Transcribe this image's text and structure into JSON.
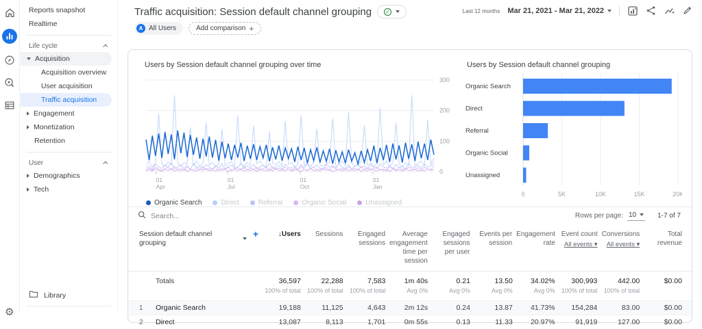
{
  "rail": {
    "icons": [
      "home-icon",
      "reports-icon",
      "explore-icon",
      "advertising-icon",
      "configure-icon",
      "settings-gear-icon"
    ],
    "active_icon": "reports-icon"
  },
  "sidebar": {
    "items": [
      {
        "type": "plain",
        "label": "Reports snapshot"
      },
      {
        "type": "plain",
        "label": "Realtime"
      },
      {
        "type": "divider"
      },
      {
        "type": "section",
        "label": "Life cycle"
      },
      {
        "type": "parent-open",
        "label": "Acquisition",
        "pill": true
      },
      {
        "type": "child",
        "label": "Acquisition overview"
      },
      {
        "type": "child",
        "label": "User acquisition"
      },
      {
        "type": "child",
        "label": "Traffic acquisition",
        "selected": true
      },
      {
        "type": "parent-closed",
        "label": "Engagement"
      },
      {
        "type": "parent-closed",
        "label": "Monetization"
      },
      {
        "type": "parent-none",
        "label": "Retention"
      },
      {
        "type": "divider"
      },
      {
        "type": "section",
        "label": "User"
      },
      {
        "type": "parent-closed",
        "label": "Demographics"
      },
      {
        "type": "parent-closed",
        "label": "Tech"
      }
    ],
    "library_label": "Library",
    "selected_color": "#1a73e8"
  },
  "header": {
    "title": "Traffic acquisition: Session default channel grouping",
    "date_preset": "Last 12 months",
    "date_range": "Mar 21, 2021 - Mar 21, 2022",
    "icons": [
      "edit-chart-icon",
      "share-icon",
      "insights-icon",
      "edit-pencil-icon"
    ]
  },
  "chips": {
    "all_users": "All Users",
    "all_users_initial": "A",
    "add_comparison": "Add comparison",
    "add_plus": "+"
  },
  "chart_data": [
    {
      "type": "line",
      "title": "Users by Session default channel grouping over time",
      "ylabel": "",
      "xlabel": "",
      "ylim": [
        0,
        300
      ],
      "yticks": [
        0,
        100,
        200,
        300
      ],
      "grid": true,
      "legend_position": "bottom",
      "x_ticks": [
        {
          "line1": "01",
          "line2": "Apr",
          "pos": 0.035
        },
        {
          "line1": "01",
          "line2": "Jul",
          "pos": 0.283
        },
        {
          "line1": "01",
          "line2": "Oct",
          "pos": 0.535
        },
        {
          "line1": "01",
          "line2": "Jan",
          "pos": 0.788
        }
      ],
      "series": [
        {
          "name": "Organic Search",
          "color": "#1967d2",
          "faded": false,
          "values": [
            105,
            38,
            118,
            52,
            125,
            45,
            130,
            58,
            122,
            40,
            135,
            60,
            128,
            48,
            120,
            55,
            112,
            42,
            108,
            50,
            115,
            46,
            104,
            36,
            98,
            44,
            92,
            38,
            88,
            46,
            95,
            35,
            85,
            42,
            90,
            38,
            82,
            45,
            88,
            34,
            80,
            40,
            86,
            36,
            78,
            43,
            75,
            32,
            82,
            38,
            78,
            28,
            72,
            36,
            80,
            30,
            68,
            34,
            75,
            26,
            70,
            32,
            65,
            28,
            72,
            34,
            62,
            25,
            68,
            30,
            72,
            35,
            85,
            28,
            78,
            38,
            88,
            32,
            92,
            40,
            86,
            30,
            95,
            42,
            90,
            35,
            98,
            44,
            92,
            38,
            105,
            55
          ]
        },
        {
          "name": "Direct",
          "color": "#b7cffb",
          "faded": true,
          "values": [
            20,
            35,
            15,
            28,
            190,
            25,
            18,
            32,
            22,
            250,
            28,
            16,
            30,
            24,
            145,
            20,
            35,
            18,
            26,
            160,
            22,
            30,
            17,
            25,
            140,
            19,
            28,
            33,
            15,
            185,
            24,
            18,
            30,
            22,
            150,
            26,
            35,
            20,
            16,
            130,
            28,
            22,
            33,
            18,
            165,
            25,
            30,
            15,
            24,
            185,
            20,
            28,
            16,
            32,
            140,
            22,
            18,
            26,
            30,
            175,
            15,
            25,
            35,
            20,
            195,
            28,
            18,
            24,
            32,
            150,
            20,
            30,
            16,
            26,
            210,
            22,
            35,
            18,
            28,
            160,
            24,
            15,
            30,
            22,
            250,
            18,
            28,
            35,
            20,
            170,
            25,
            45
          ]
        },
        {
          "name": "Referral",
          "color": "#bcc4f4",
          "faded": true,
          "values": [
            12,
            18,
            8,
            25,
            15,
            10,
            22,
            14,
            30,
            9,
            16,
            24,
            11,
            20,
            7,
            28,
            13,
            18,
            10,
            24,
            15,
            8,
            20,
            12,
            26,
            9,
            17,
            22,
            11,
            15,
            28,
            10,
            19,
            13,
            24,
            8,
            16,
            21,
            12,
            27,
            10,
            14,
            20,
            9,
            25,
            15,
            11,
            18,
            7,
            23,
            13,
            26,
            9,
            16,
            21,
            12,
            8,
            24,
            14,
            19,
            10,
            27,
            15,
            11,
            22,
            8,
            17,
            25,
            12,
            19,
            9,
            23,
            14,
            10,
            26,
            16,
            11,
            20,
            8,
            24,
            13,
            18,
            9,
            27,
            15,
            12,
            21,
            10,
            25,
            14,
            19,
            30
          ]
        },
        {
          "name": "Organic Social",
          "color": "#d4b8f3",
          "faded": true,
          "values": [
            6,
            12,
            4,
            15,
            8,
            3,
            10,
            14,
            5,
            18,
            7,
            11,
            4,
            16,
            9,
            3,
            13,
            6,
            17,
            5,
            10,
            8,
            14,
            4,
            12,
            7,
            16,
            3,
            9,
            13,
            5,
            18,
            6,
            11,
            8,
            15,
            4,
            10,
            14,
            3,
            17,
            7,
            12,
            5,
            16,
            9,
            4,
            13,
            6,
            18,
            8,
            3,
            11,
            15,
            5,
            10,
            7,
            14,
            4,
            17,
            9,
            6,
            12,
            3,
            16,
            8,
            11,
            5,
            18,
            7,
            13,
            4,
            10,
            15,
            6,
            9,
            3,
            17,
            12,
            5,
            14,
            8,
            4,
            16,
            10,
            6,
            13,
            3,
            15,
            9,
            7,
            20
          ]
        },
        {
          "name": "Unassigned",
          "color": "#c8a5ea",
          "faded": true,
          "values": [
            3,
            7,
            2,
            9,
            5,
            1,
            8,
            4,
            10,
            2,
            6,
            3,
            9,
            1,
            7,
            4,
            2,
            8,
            5,
            11,
            3,
            6,
            2,
            7,
            4,
            9,
            1,
            5,
            8,
            3,
            10,
            2,
            6,
            4,
            7,
            1,
            9,
            5,
            3,
            8,
            2,
            11,
            4,
            6,
            3,
            9,
            2,
            7,
            5,
            1,
            8,
            4,
            10,
            3,
            6,
            2,
            9,
            5,
            7,
            1,
            4,
            8,
            3,
            11,
            2,
            6,
            4,
            9,
            1,
            7,
            3,
            10,
            5,
            2,
            8,
            4,
            6,
            1,
            9,
            3,
            7,
            2,
            11,
            5,
            4,
            8,
            2,
            6,
            3,
            9,
            5,
            8
          ]
        }
      ]
    },
    {
      "type": "bar",
      "title": "Users by Session default channel grouping",
      "orientation": "horizontal",
      "categories": [
        "Organic Search",
        "Direct",
        "Referral",
        "Organic Social",
        "Unassigned"
      ],
      "values": [
        19188,
        13087,
        3200,
        800,
        400
      ],
      "xlim": [
        0,
        20000
      ],
      "xticks": [
        {
          "label": "0",
          "v": 0
        },
        {
          "label": "5K",
          "v": 5000
        },
        {
          "label": "10K",
          "v": 10000
        },
        {
          "label": "15K",
          "v": 15000
        },
        {
          "label": "20K",
          "v": 20000
        }
      ],
      "bar_color": "#4285f4",
      "grid": true
    }
  ],
  "table": {
    "search_placeholder": "Search...",
    "rows_per_page_label": "Rows per page:",
    "rows_per_page_value": "10",
    "pagination": "1-7 of 7",
    "dimension_header": "Session default channel grouping",
    "add_column": "+",
    "sort_arrow": "↓",
    "columns": [
      {
        "label": "Users",
        "sorted": true
      },
      {
        "label": "Sessions"
      },
      {
        "label": "Engaged sessions"
      },
      {
        "label": "Average engagement time per session"
      },
      {
        "label": "Engaged sessions per user"
      },
      {
        "label": "Events per session"
      },
      {
        "label": "Engagement rate"
      },
      {
        "label": "Event count",
        "sub": "All events"
      },
      {
        "label": "Conversions",
        "sub": "All events"
      },
      {
        "label": "Total revenue"
      }
    ],
    "totals": {
      "label": "Totals",
      "values": [
        "36,597",
        "22,288",
        "7,583",
        "1m 40s",
        "0.21",
        "13.50",
        "34.02%",
        "300,993",
        "442.00",
        "$0.00"
      ],
      "subs": [
        "100% of total",
        "100% of total",
        "100% of total",
        "Avg 0%",
        "Avg 0%",
        "Avg 0%",
        "Avg 0%",
        "100% of total",
        "100% of total",
        ""
      ]
    },
    "rows": [
      {
        "num": "1",
        "channel": "Organic Search",
        "highlight": true,
        "values": [
          "19,188",
          "11,125",
          "4,643",
          "2m 12s",
          "0.24",
          "13.87",
          "41.73%",
          "154,284",
          "83.00",
          "$0.00"
        ]
      },
      {
        "num": "2",
        "channel": "Direct",
        "highlight": false,
        "values": [
          "13,087",
          "8,113",
          "1,701",
          "0m 55s",
          "0.13",
          "11.33",
          "20.97%",
          "91,919",
          "127.00",
          "$0.00"
        ]
      }
    ]
  }
}
